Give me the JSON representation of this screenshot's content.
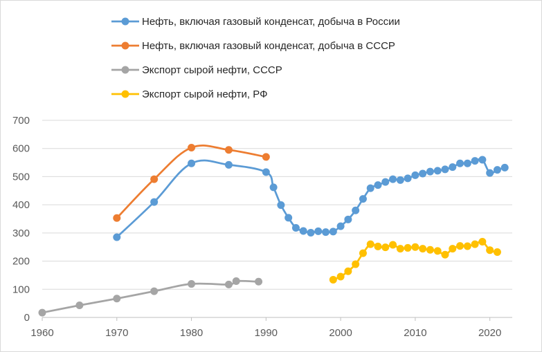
{
  "chart_data": {
    "type": "line",
    "title": "",
    "xlabel": "",
    "ylabel": "",
    "xlim": [
      1960,
      2023
    ],
    "ylim": [
      0,
      700
    ],
    "x_ticks": [
      1960,
      1970,
      1980,
      1990,
      2000,
      2010,
      2020
    ],
    "y_ticks": [
      0,
      100,
      200,
      300,
      400,
      500,
      600,
      700
    ],
    "grid": "horizontal",
    "legend_position": "top",
    "series": [
      {
        "name": "Нефть, включая газовый конденсат, добыча в России",
        "color": "#5b9bd5",
        "x": [
          1970,
          1975,
          1980,
          1985,
          1990,
          1991,
          1992,
          1993,
          1994,
          1995,
          1996,
          1997,
          1998,
          1999,
          2000,
          2001,
          2002,
          2003,
          2004,
          2005,
          2006,
          2007,
          2008,
          2009,
          2010,
          2011,
          2012,
          2013,
          2014,
          2015,
          2016,
          2017,
          2018,
          2019,
          2020,
          2021,
          2022
        ],
        "y": [
          285,
          410,
          547,
          542,
          516,
          462,
          399,
          354,
          318,
          307,
          301,
          306,
          303,
          305,
          324,
          348,
          380,
          421,
          459,
          470,
          481,
          491,
          488,
          494,
          505,
          511,
          518,
          521,
          526,
          534,
          547,
          547,
          556,
          560,
          513,
          524,
          532
        ]
      },
      {
        "name": "Нефть, включая газовый конденсат, добыча в СССР",
        "color": "#ed7d31",
        "x": [
          1970,
          1975,
          1980,
          1985,
          1990
        ],
        "y": [
          353,
          491,
          603,
          595,
          570
        ]
      },
      {
        "name": "Экспорт сырой нефти,  СССР",
        "color": "#a5a5a5",
        "x": [
          1960,
          1965,
          1970,
          1975,
          1980,
          1985,
          1986,
          1989
        ],
        "y": [
          17,
          43,
          67,
          93,
          119,
          117,
          129,
          127
        ]
      },
      {
        "name": "Экспорт сырой нефти, РФ",
        "color": "#ffc000",
        "x": [
          1999,
          2000,
          2001,
          2002,
          2003,
          2004,
          2005,
          2006,
          2007,
          2008,
          2009,
          2010,
          2011,
          2012,
          2013,
          2014,
          2015,
          2016,
          2017,
          2018,
          2019,
          2020,
          2021
        ],
        "y": [
          134,
          145,
          164,
          189,
          228,
          260,
          252,
          249,
          258,
          244,
          247,
          250,
          244,
          240,
          236,
          223,
          244,
          254,
          253,
          260,
          269,
          239,
          232
        ]
      }
    ]
  }
}
